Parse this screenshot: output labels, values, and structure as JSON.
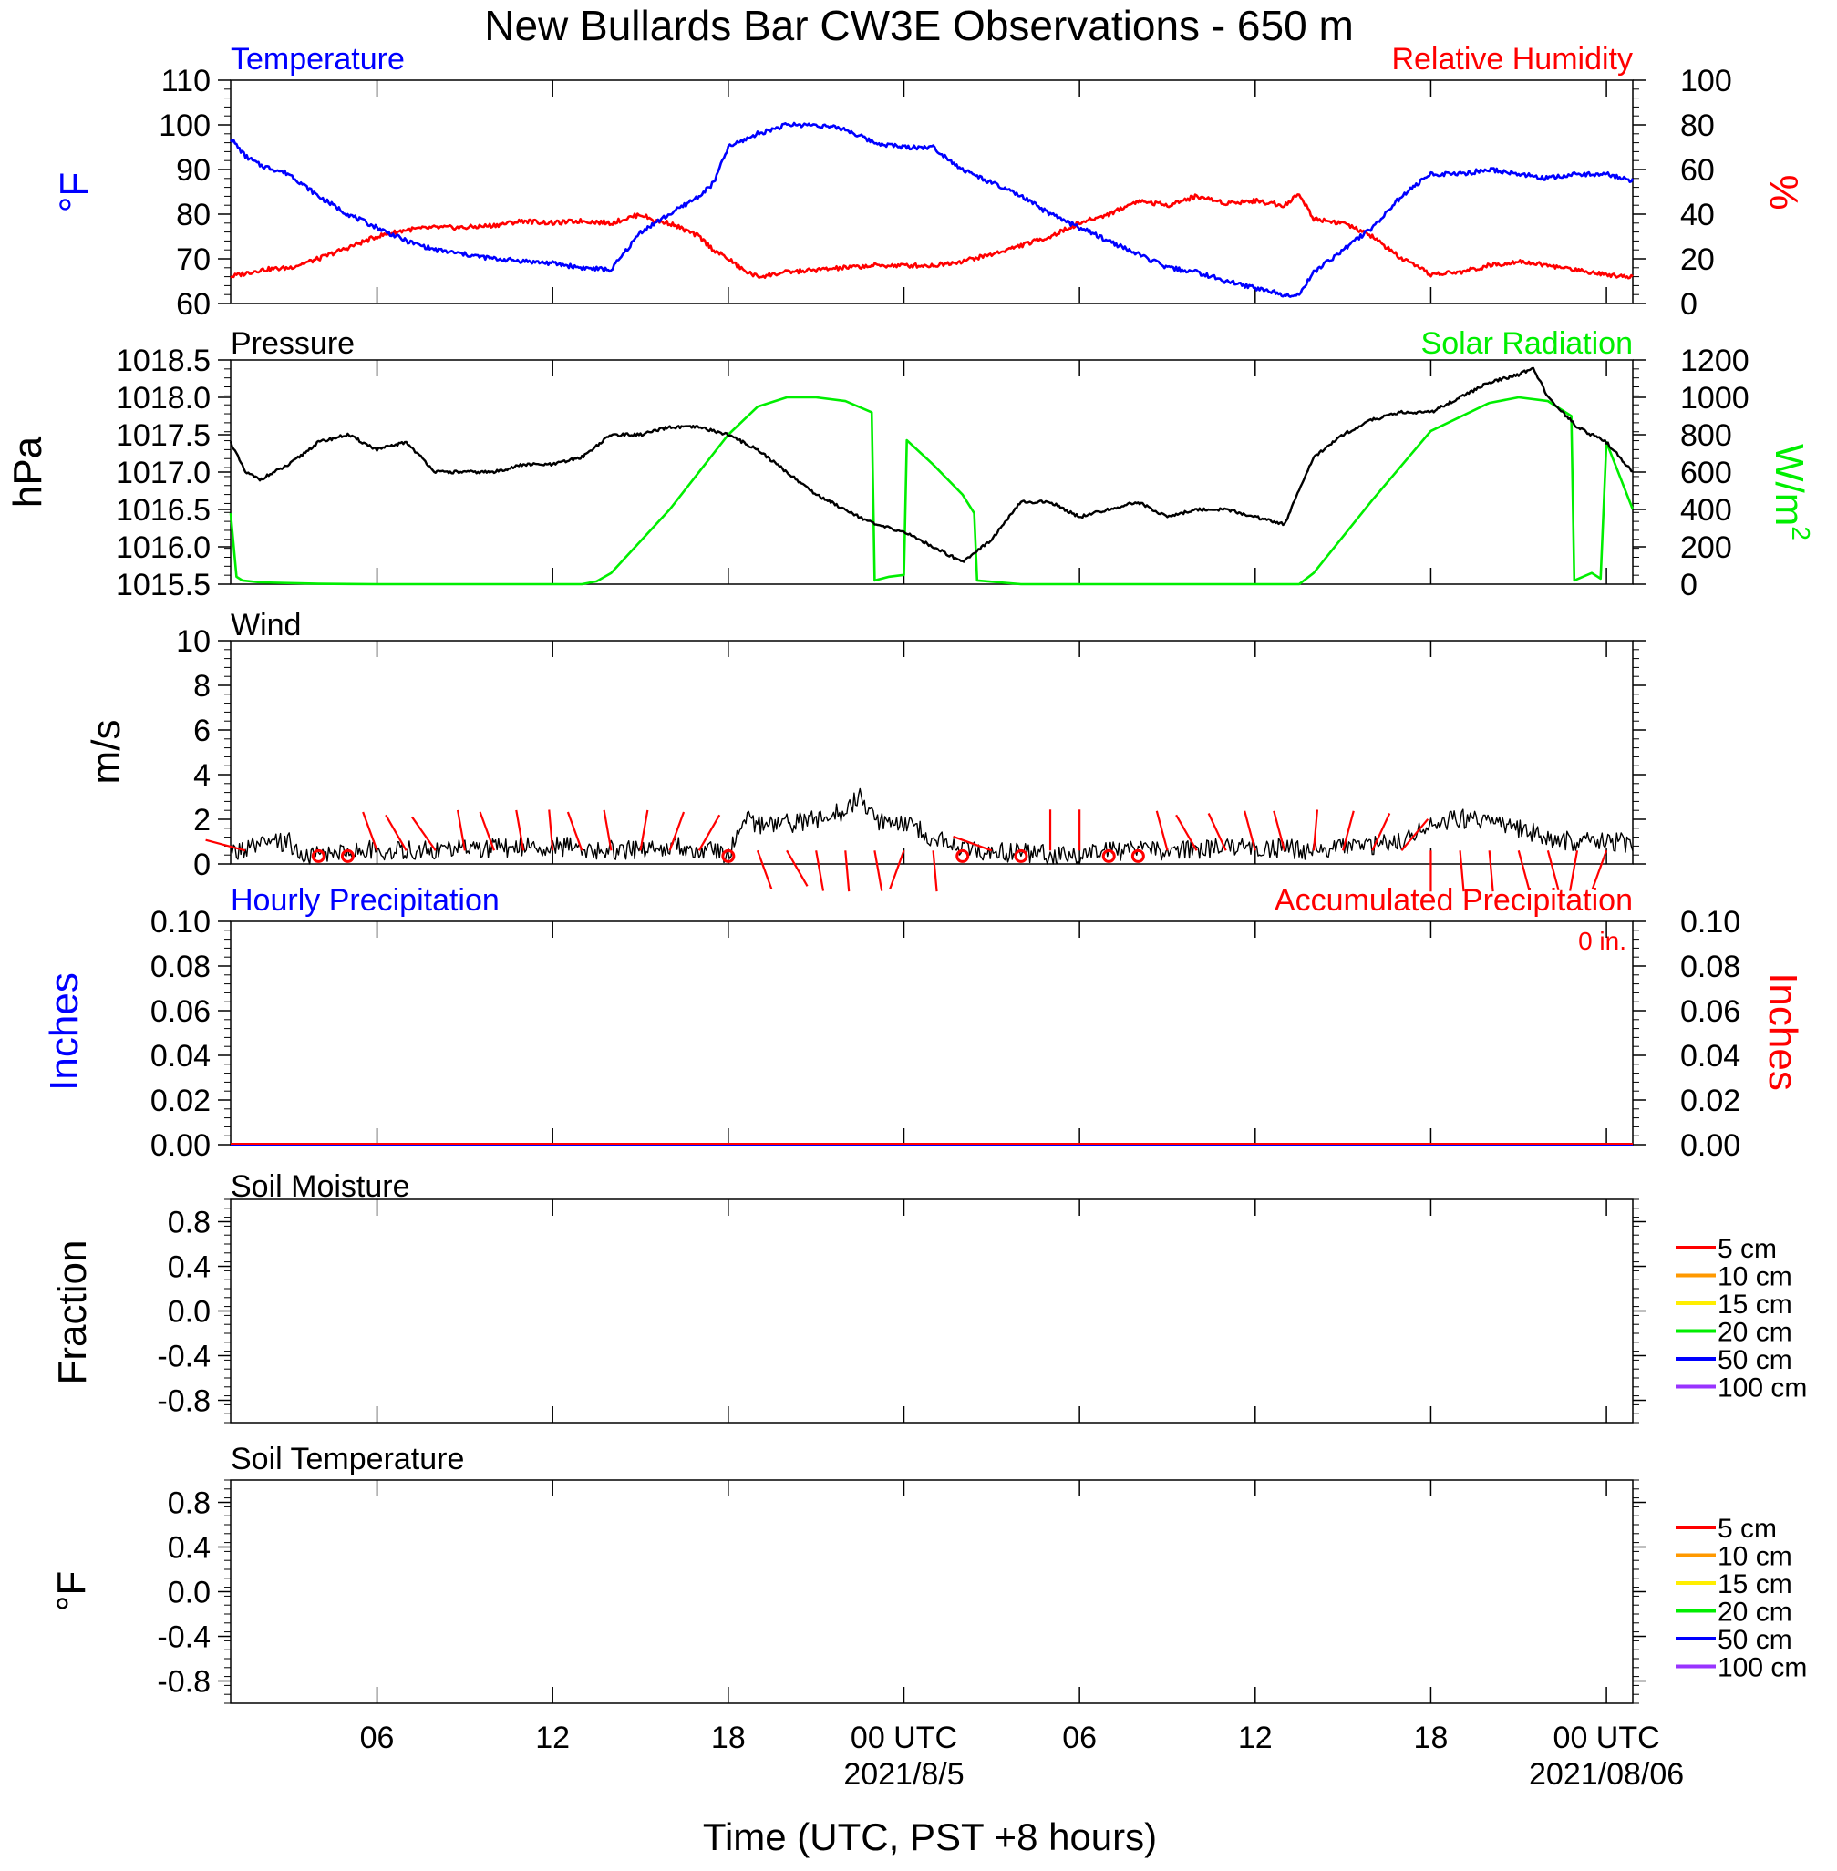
{
  "title": "New Bullards Bar CW3E Observations - 650 m",
  "xaxis": {
    "label": "Time (UTC, PST +8 hours)",
    "ticks": [
      {
        "t": 6,
        "label": "06"
      },
      {
        "t": 12,
        "label": "12"
      },
      {
        "t": 18,
        "label": "18"
      },
      {
        "t": 24,
        "label": "00 UTC"
      },
      {
        "t": 30,
        "label": "06"
      },
      {
        "t": 36,
        "label": "12"
      },
      {
        "t": 42,
        "label": "18"
      },
      {
        "t": 48,
        "label": "00 UTC"
      }
    ],
    "date_labels": [
      {
        "t": 24,
        "label": "2021/8/5"
      },
      {
        "t": 48,
        "label": "2021/08/06"
      }
    ],
    "range_hours": [
      1,
      48.9
    ]
  },
  "legend_soil": [
    "5 cm",
    "10 cm",
    "15 cm",
    "20 cm",
    "50 cm",
    "100 cm"
  ],
  "colors": {
    "temperature": "#0000ff",
    "humidity": "#ff0000",
    "pressure": "#000000",
    "solar": "#00ee00",
    "wind": "#000000",
    "barbs": "#ff0000",
    "soil": [
      "#ff0000",
      "#ff9900",
      "#ffee00",
      "#00ee00",
      "#0000ff",
      "#9933ff"
    ]
  },
  "panels": {
    "temp": {
      "left_title": "Temperature",
      "right_title": "Relative Humidity",
      "left_unit": "°F",
      "right_unit": "%",
      "left_ticks": [
        "60",
        "70",
        "80",
        "90",
        "100",
        "110"
      ],
      "right_ticks": [
        "0",
        "20",
        "40",
        "60",
        "80",
        "100"
      ]
    },
    "press": {
      "left_title": "Pressure",
      "right_title": "Solar Radiation",
      "left_unit": "hPa",
      "right_unit": "W/m",
      "left_ticks": [
        "1015.5",
        "1016.0",
        "1016.5",
        "1017.0",
        "1017.5",
        "1018.0",
        "1018.5"
      ],
      "right_ticks": [
        "0",
        "200",
        "400",
        "600",
        "800",
        "1000",
        "1200"
      ]
    },
    "wind": {
      "left_title": "Wind",
      "left_unit": "m/s",
      "left_ticks": [
        "0",
        "2",
        "4",
        "6",
        "8",
        "10"
      ]
    },
    "precip": {
      "left_title": "Hourly Precipitation",
      "right_title": "Accumulated Precipitation",
      "left_unit": "Inches",
      "right_unit": "Inches",
      "total": "0 in.",
      "left_ticks": [
        "0.00",
        "0.02",
        "0.04",
        "0.06",
        "0.08",
        "0.10"
      ],
      "right_ticks": [
        "0.00",
        "0.02",
        "0.04",
        "0.06",
        "0.08",
        "0.10"
      ]
    },
    "soilm": {
      "left_title": "Soil Moisture",
      "left_unit": "Fraction",
      "left_ticks": [
        "-0.8",
        "-0.4",
        "0.0",
        "0.4",
        "0.8"
      ]
    },
    "soilt": {
      "left_title": "Soil Temperature",
      "left_unit": "°F",
      "left_ticks": [
        "-0.8",
        "-0.4",
        "0.0",
        "0.4",
        "0.8"
      ]
    }
  },
  "chart_data": [
    {
      "type": "line",
      "title": "Temperature / Relative Humidity",
      "x_unit": "hours since 2021-08-04 00 UTC",
      "ylim_left": [
        60,
        110
      ],
      "ylim_right": [
        0,
        100
      ],
      "series": [
        {
          "name": "Temperature",
          "axis": "left",
          "x": [
            1,
            1.5,
            2,
            3,
            4,
            5,
            6,
            7,
            8,
            9,
            10,
            11,
            12,
            13,
            14,
            15,
            16,
            17,
            17.5,
            18,
            19,
            20,
            21,
            22,
            23,
            24,
            25,
            26,
            27,
            28,
            29,
            30,
            31,
            32,
            33,
            34,
            35,
            36,
            37,
            37.5,
            38,
            39,
            40,
            41,
            42,
            43,
            44,
            45,
            46,
            47,
            48,
            48.9
          ],
          "y": [
            97,
            93,
            91,
            89,
            84,
            80,
            77,
            74,
            72,
            71,
            70,
            69.5,
            69,
            68,
            67.5,
            76,
            80,
            84,
            87,
            95,
            98,
            100,
            100,
            99,
            96,
            95,
            95,
            90,
            87,
            84,
            80,
            77,
            74,
            71,
            68,
            67,
            65,
            63.5,
            62,
            62,
            67,
            72,
            77,
            84,
            89,
            89,
            90,
            89,
            88,
            89,
            89,
            87.5
          ]
        },
        {
          "name": "Relative Humidity",
          "axis": "right",
          "x": [
            1,
            2,
            3,
            4,
            5,
            6,
            7,
            8,
            9,
            10,
            11,
            12,
            13,
            14,
            15,
            15.5,
            16,
            17,
            17.5,
            18,
            18.5,
            19,
            20,
            21,
            22,
            23,
            24,
            25,
            26,
            27,
            28,
            29,
            30,
            31,
            32,
            33,
            34,
            35,
            36,
            37,
            37.5,
            38,
            39,
            40,
            41,
            42,
            43,
            44,
            45,
            46,
            47,
            48,
            48.9
          ],
          "y": [
            12,
            15,
            16,
            20,
            25,
            30,
            33,
            34,
            34,
            35,
            37,
            36,
            37,
            36,
            40,
            37,
            36,
            30,
            24,
            20,
            15,
            12,
            14,
            15,
            16,
            17,
            17,
            17,
            19,
            22,
            26,
            30,
            36,
            40,
            46,
            44,
            48,
            45,
            46,
            44,
            49,
            38,
            36,
            30,
            20,
            13,
            14,
            17,
            19,
            17,
            15,
            13,
            12
          ]
        }
      ]
    },
    {
      "type": "line",
      "title": "Pressure / Solar Radiation",
      "x_unit": "hours since 2021-08-04 00 UTC",
      "ylim_left": [
        1015.5,
        1018.5
      ],
      "ylim_right": [
        0,
        1200
      ],
      "series": [
        {
          "name": "Pressure",
          "axis": "left",
          "x": [
            1,
            1.5,
            2,
            3,
            4,
            5,
            6,
            7,
            8,
            9,
            10,
            11,
            12,
            13,
            14,
            15,
            16,
            17,
            18,
            19,
            20,
            21,
            22,
            23,
            24,
            25,
            26,
            27,
            28,
            29,
            30,
            31,
            32,
            33,
            34,
            35,
            36,
            37,
            38,
            39,
            40,
            41,
            42,
            43,
            44,
            45,
            45.5,
            46,
            47,
            48,
            48.9
          ],
          "y": [
            1017.4,
            1017.0,
            1016.9,
            1017.1,
            1017.4,
            1017.5,
            1017.3,
            1017.4,
            1017.0,
            1017.0,
            1017.0,
            1017.1,
            1017.1,
            1017.2,
            1017.5,
            1017.5,
            1017.6,
            1017.6,
            1017.5,
            1017.3,
            1017.0,
            1016.7,
            1016.5,
            1016.3,
            1016.2,
            1016.0,
            1015.8,
            1016.1,
            1016.6,
            1016.6,
            1016.4,
            1016.5,
            1016.6,
            1016.4,
            1016.5,
            1016.5,
            1016.4,
            1016.3,
            1017.2,
            1017.5,
            1017.7,
            1017.8,
            1017.8,
            1018.0,
            1018.2,
            1018.3,
            1018.4,
            1018.0,
            1017.6,
            1017.4,
            1017.0
          ]
        },
        {
          "name": "Solar Radiation",
          "axis": "right",
          "x": [
            1,
            1.2,
            1.4,
            2,
            4,
            6,
            8,
            10,
            12,
            13,
            13.5,
            14,
            16,
            18,
            19,
            20,
            21,
            22,
            22.9,
            23.0,
            23.5,
            24,
            24.1,
            25,
            26,
            26.4,
            26.5,
            28,
            30,
            32,
            34,
            36,
            37,
            37.5,
            38,
            40,
            42,
            44,
            45,
            46,
            46.8,
            46.9,
            47.5,
            47.8,
            48,
            48.9
          ],
          "y": [
            380,
            40,
            20,
            10,
            2,
            0,
            0,
            0,
            0,
            0,
            15,
            60,
            400,
            800,
            950,
            1000,
            1000,
            980,
            920,
            20,
            40,
            50,
            770,
            640,
            480,
            380,
            20,
            0,
            0,
            0,
            0,
            0,
            0,
            0,
            60,
            450,
            820,
            970,
            1000,
            980,
            900,
            20,
            60,
            30,
            760,
            400
          ]
        }
      ]
    },
    {
      "type": "line",
      "title": "Wind",
      "x_unit": "hours since 2021-08-04 00 UTC",
      "ylim": [
        0,
        10
      ],
      "series": [
        {
          "name": "Wind speed",
          "x": [
            1,
            2,
            3,
            3.5,
            4,
            5,
            6,
            7,
            8,
            9,
            10,
            11,
            12,
            13,
            14,
            15,
            16,
            17,
            18,
            18.5,
            19,
            20,
            21,
            22,
            22.5,
            23,
            24,
            25,
            26,
            27,
            28,
            29,
            30,
            31,
            32,
            33,
            34,
            35,
            36,
            37,
            38,
            39,
            40,
            41,
            42,
            43,
            44,
            45,
            46,
            47,
            48,
            48.9
          ],
          "y": [
            0.5,
            0.8,
            1.0,
            0.2,
            0.4,
            0.6,
            0.6,
            0.6,
            0.6,
            0.7,
            0.7,
            0.8,
            0.8,
            0.7,
            0.6,
            0.6,
            0.8,
            0.7,
            0.3,
            2.0,
            1.8,
            1.8,
            2.0,
            2.4,
            3.0,
            2.0,
            1.8,
            1.2,
            0.6,
            0.5,
            0.5,
            0.4,
            0.3,
            0.6,
            0.6,
            0.6,
            0.7,
            0.7,
            0.7,
            0.7,
            0.6,
            0.7,
            0.8,
            1.0,
            1.8,
            2.0,
            2.0,
            1.6,
            1.2,
            1.0,
            1.0,
            0.9
          ]
        }
      ],
      "barbs": [
        {
          "t": 1.5,
          "dir": 285
        },
        {
          "t": 4,
          "dir": 0
        },
        {
          "t": 5,
          "dir": 0
        },
        {
          "t": 6,
          "dir": 340
        },
        {
          "t": 7,
          "dir": 330
        },
        {
          "t": 8,
          "dir": 325
        },
        {
          "t": 9,
          "dir": 350
        },
        {
          "t": 10,
          "dir": 340
        },
        {
          "t": 11,
          "dir": 350
        },
        {
          "t": 12,
          "dir": 355
        },
        {
          "t": 13,
          "dir": 340
        },
        {
          "t": 14,
          "dir": 350
        },
        {
          "t": 15,
          "dir": 10
        },
        {
          "t": 16,
          "dir": 20
        },
        {
          "t": 17,
          "dir": 30
        },
        {
          "t": 18,
          "dir": 0
        },
        {
          "t": 19,
          "dir": 160
        },
        {
          "t": 20,
          "dir": 150
        },
        {
          "t": 21,
          "dir": 170
        },
        {
          "t": 22,
          "dir": 175
        },
        {
          "t": 23,
          "dir": 170
        },
        {
          "t": 24,
          "dir": 200
        },
        {
          "t": 25,
          "dir": 175
        },
        {
          "t": 26,
          "dir": 0
        },
        {
          "t": 27,
          "dir": 290
        },
        {
          "t": 28,
          "dir": 0
        },
        {
          "t": 29,
          "dir": 0
        },
        {
          "t": 30,
          "dir": 0
        },
        {
          "t": 31,
          "dir": 0
        },
        {
          "t": 32,
          "dir": 0
        },
        {
          "t": 33,
          "dir": 345
        },
        {
          "t": 34,
          "dir": 330
        },
        {
          "t": 35,
          "dir": 335
        },
        {
          "t": 36,
          "dir": 345
        },
        {
          "t": 37,
          "dir": 345
        },
        {
          "t": 38,
          "dir": 5
        },
        {
          "t": 39,
          "dir": 15
        },
        {
          "t": 40,
          "dir": 25
        },
        {
          "t": 41,
          "dir": 40
        },
        {
          "t": 42,
          "dir": 180
        },
        {
          "t": 43,
          "dir": 175
        },
        {
          "t": 44,
          "dir": 175
        },
        {
          "t": 45,
          "dir": 165
        },
        {
          "t": 46,
          "dir": 165
        },
        {
          "t": 47,
          "dir": 190
        },
        {
          "t": 48,
          "dir": 200
        }
      ]
    },
    {
      "type": "line",
      "title": "Hourly Precipitation / Accumulated Precipitation",
      "ylim_left": [
        0,
        0.1
      ],
      "ylim_right": [
        0,
        0.1
      ],
      "series": [
        {
          "name": "Hourly Precipitation",
          "axis": "left",
          "x": [
            1,
            48.9
          ],
          "y": [
            0,
            0
          ]
        },
        {
          "name": "Accumulated Precipitation",
          "axis": "right",
          "x": [
            1,
            48.9
          ],
          "y": [
            0,
            0
          ]
        }
      ]
    },
    {
      "type": "line",
      "title": "Soil Moisture",
      "ylim": [
        -1,
        1
      ],
      "series": []
    },
    {
      "type": "line",
      "title": "Soil Temperature",
      "ylim": [
        -1,
        1
      ],
      "series": []
    }
  ]
}
